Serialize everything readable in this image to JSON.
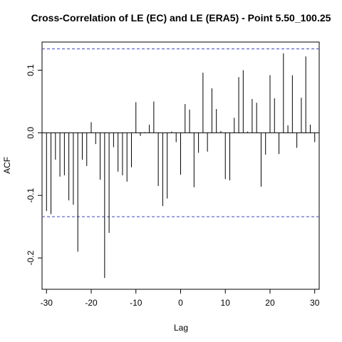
{
  "chart_data": {
    "type": "bar",
    "title": "Cross-Correlation of LE (EC) and LE (ERA5) - Point 5.50_100.25",
    "xlabel": "Lag",
    "ylabel": "ACF",
    "xlim": [
      -31,
      31
    ],
    "ylim": [
      -0.25,
      0.145
    ],
    "x_ticks": [
      -30,
      -20,
      -10,
      0,
      10,
      20,
      30
    ],
    "x_tick_labels": [
      "-30",
      "-20",
      "-10",
      "0",
      "10",
      "20",
      "30"
    ],
    "y_ticks": [
      -0.2,
      -0.1,
      0.0,
      0.1
    ],
    "y_tick_labels": [
      "-0.2",
      "-0.1",
      "0.0",
      "0.1"
    ],
    "confidence_limits": [
      0.134,
      -0.134
    ],
    "confidence_color": "#4040c8",
    "bar_color": "#000000",
    "lags": [
      -30,
      -29,
      -28,
      -27,
      -26,
      -25,
      -24,
      -23,
      -22,
      -21,
      -20,
      -19,
      -18,
      -17,
      -16,
      -15,
      -14,
      -13,
      -12,
      -11,
      -10,
      -9,
      -8,
      -7,
      -6,
      -5,
      -4,
      -3,
      -2,
      -1,
      0,
      1,
      2,
      3,
      4,
      5,
      6,
      7,
      8,
      9,
      10,
      11,
      12,
      13,
      14,
      15,
      16,
      17,
      18,
      19,
      20,
      21,
      22,
      23,
      24,
      25,
      26,
      27,
      28,
      29,
      30
    ],
    "values": [
      -0.125,
      -0.13,
      -0.043,
      -0.07,
      -0.068,
      -0.108,
      -0.115,
      -0.19,
      -0.043,
      -0.053,
      0.017,
      -0.018,
      -0.075,
      -0.232,
      -0.16,
      -0.023,
      -0.062,
      -0.068,
      -0.078,
      -0.055,
      0.049,
      -0.005,
      0.001,
      0.013,
      0.05,
      -0.085,
      -0.117,
      -0.105,
      0.002,
      -0.015,
      -0.067,
      0.046,
      0.037,
      -0.087,
      -0.032,
      0.096,
      -0.03,
      0.071,
      0.038,
      0.003,
      -0.074,
      -0.076,
      0.024,
      0.089,
      0.1,
      0.002,
      0.054,
      0.048,
      -0.086,
      -0.035,
      0.092,
      0.055,
      -0.034,
      0.127,
      0.012,
      0.092,
      -0.024,
      0.056,
      0.122,
      0.013,
      -0.015
    ]
  }
}
